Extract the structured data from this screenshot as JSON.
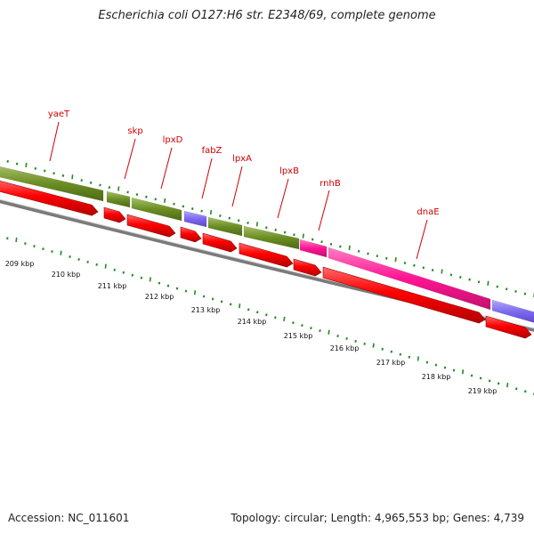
{
  "title": "Escherichia coli O127:H6 str. E2348/69, complete genome",
  "footer": {
    "accession": "Accession: NC_011601",
    "summary": "Topology: circular; Length: 4,965,553 bp; Genes: 4,739"
  },
  "colors": {
    "cds_red": "#ff0000",
    "cog_olive": "#6b8e23",
    "cog_magenta": "#ff1493",
    "cog_slate": "#7b68ee",
    "backbone": "#808080",
    "tick_green": "#228b22",
    "label_red": "#cc0000"
  },
  "gene_labels": [
    "yaeT",
    "skp",
    "lpxD",
    "fabZ",
    "lpxA",
    "lpxB",
    "rnhB",
    "dnaE"
  ],
  "ruler_labels": [
    "209 kbp",
    "210 kbp",
    "211 kbp",
    "212 kbp",
    "213 kbp",
    "214 kbp",
    "215 kbp",
    "216 kbp",
    "217 kbp",
    "218 kbp",
    "219 kbp"
  ]
}
